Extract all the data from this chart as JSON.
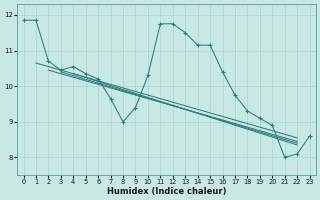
{
  "xlabel": "Humidex (Indice chaleur)",
  "ylabel": "",
  "bg_color": "#c8e8e4",
  "line_color": "#2e7d7d",
  "grid_color": "#b0d8d4",
  "xlim": [
    -0.5,
    23.5
  ],
  "ylim": [
    7.5,
    12.3
  ],
  "yticks": [
    8,
    9,
    10,
    11,
    12
  ],
  "xticks": [
    0,
    1,
    2,
    3,
    4,
    5,
    6,
    7,
    8,
    9,
    10,
    11,
    12,
    13,
    14,
    15,
    16,
    17,
    18,
    19,
    20,
    21,
    22,
    23
  ],
  "data_line": [
    11.85,
    11.85,
    10.7,
    10.45,
    10.55,
    10.35,
    10.2,
    9.65,
    9.0,
    9.4,
    10.3,
    11.75,
    11.75,
    11.5,
    11.15,
    11.15,
    10.4,
    9.75,
    9.3,
    9.1,
    8.9,
    8.0,
    8.1,
    8.6
  ],
  "trend_lines": [
    {
      "x": [
        1,
        22
      ],
      "y": [
        10.65,
        8.55
      ]
    },
    {
      "x": [
        2,
        22
      ],
      "y": [
        10.45,
        8.45
      ]
    },
    {
      "x": [
        3,
        22
      ],
      "y": [
        10.4,
        8.4
      ]
    },
    {
      "x": [
        4,
        22
      ],
      "y": [
        10.35,
        8.35
      ]
    }
  ]
}
